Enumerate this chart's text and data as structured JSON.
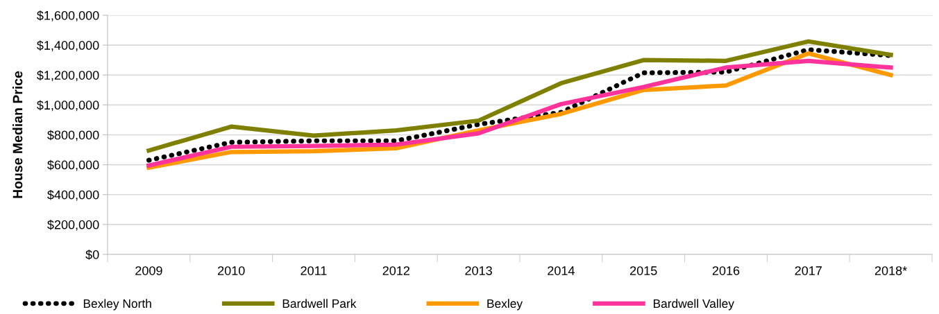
{
  "chart_data": {
    "type": "line",
    "ylabel": "House Median Price",
    "categories": [
      "2009",
      "2010",
      "2011",
      "2012",
      "2013",
      "2014",
      "2015",
      "2016",
      "2017",
      "2018*"
    ],
    "ylim": [
      0,
      1600000
    ],
    "yticks": [
      {
        "value": 0,
        "label": "$0"
      },
      {
        "value": 200000,
        "label": "$200,000"
      },
      {
        "value": 400000,
        "label": "$400,000"
      },
      {
        "value": 600000,
        "label": "$600,000"
      },
      {
        "value": 800000,
        "label": "$800,000"
      },
      {
        "value": 1000000,
        "label": "$1,000,000"
      },
      {
        "value": 1200000,
        "label": "$1,200,000"
      },
      {
        "value": 1400000,
        "label": "$1,400,000"
      },
      {
        "value": 1600000,
        "label": "$1,600,000"
      }
    ],
    "grid": "y",
    "legend": "bottom",
    "marker": "none",
    "series": [
      {
        "name": "Bexley North",
        "color": "#000000",
        "line_style": "dotted",
        "values": [
          630000,
          750000,
          760000,
          760000,
          870000,
          950000,
          1215000,
          1220000,
          1370000,
          1330000
        ]
      },
      {
        "name": "Bardwell Park",
        "color": "#7f7f00",
        "line_style": "solid",
        "values": [
          695000,
          855000,
          795000,
          830000,
          895000,
          1145000,
          1300000,
          1295000,
          1425000,
          1335000
        ]
      },
      {
        "name": "Bexley",
        "color": "#ff9900",
        "line_style": "solid",
        "values": [
          580000,
          685000,
          690000,
          710000,
          830000,
          940000,
          1100000,
          1130000,
          1345000,
          1200000
        ]
      },
      {
        "name": "Bardwell Valley",
        "color": "#ff3399",
        "line_style": "solid",
        "values": [
          595000,
          720000,
          725000,
          735000,
          810000,
          1005000,
          1120000,
          1250000,
          1295000,
          1250000
        ]
      }
    ]
  }
}
